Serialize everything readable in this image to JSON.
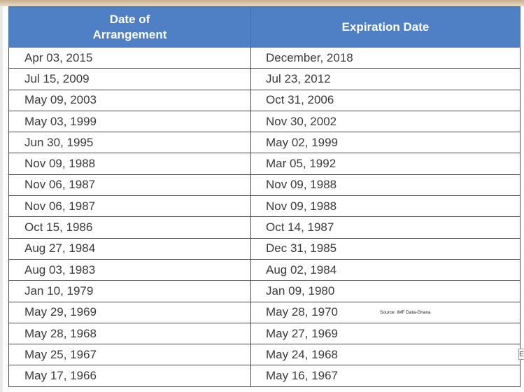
{
  "table": {
    "headers": [
      "Date of Arrangement",
      "Expiration Date"
    ],
    "rows": [
      [
        "Apr 03, 2015",
        "December, 2018"
      ],
      [
        "Jul 15, 2009",
        "Jul 23, 2012"
      ],
      [
        "May 09, 2003",
        "Oct 31, 2006"
      ],
      [
        "May 03, 1999",
        "Nov 30, 2002"
      ],
      [
        "Jun 30, 1995",
        "May 02, 1999"
      ],
      [
        "Nov 09, 1988",
        "Mar 05, 1992"
      ],
      [
        "Nov 06, 1987",
        "Nov 09, 1988"
      ],
      [
        "Nov 06, 1987",
        "Nov 09, 1988"
      ],
      [
        "Oct 15, 1986",
        "Oct 14, 1987"
      ],
      [
        "Aug 27, 1984",
        "Dec 31, 1985"
      ],
      [
        "Aug 03, 1983",
        "Aug 02, 1984"
      ],
      [
        "Jan 10, 1979",
        "Jan 09, 1980"
      ],
      [
        "May 29, 1969",
        "May 28, 1970"
      ],
      [
        "May 28, 1968",
        "May 27, 1969"
      ],
      [
        "May 25, 1967",
        "May 24, 1968"
      ],
      [
        "May 17, 1966",
        "May 16, 1967"
      ]
    ]
  },
  "source_note": "Source: IMF Data-Ghana",
  "edge_mark": "E",
  "colors": {
    "header_bg": "#4f7fc4",
    "header_text": "#ffffff",
    "cell_text": "#3a3a3a",
    "border": "#4a4a4a"
  }
}
